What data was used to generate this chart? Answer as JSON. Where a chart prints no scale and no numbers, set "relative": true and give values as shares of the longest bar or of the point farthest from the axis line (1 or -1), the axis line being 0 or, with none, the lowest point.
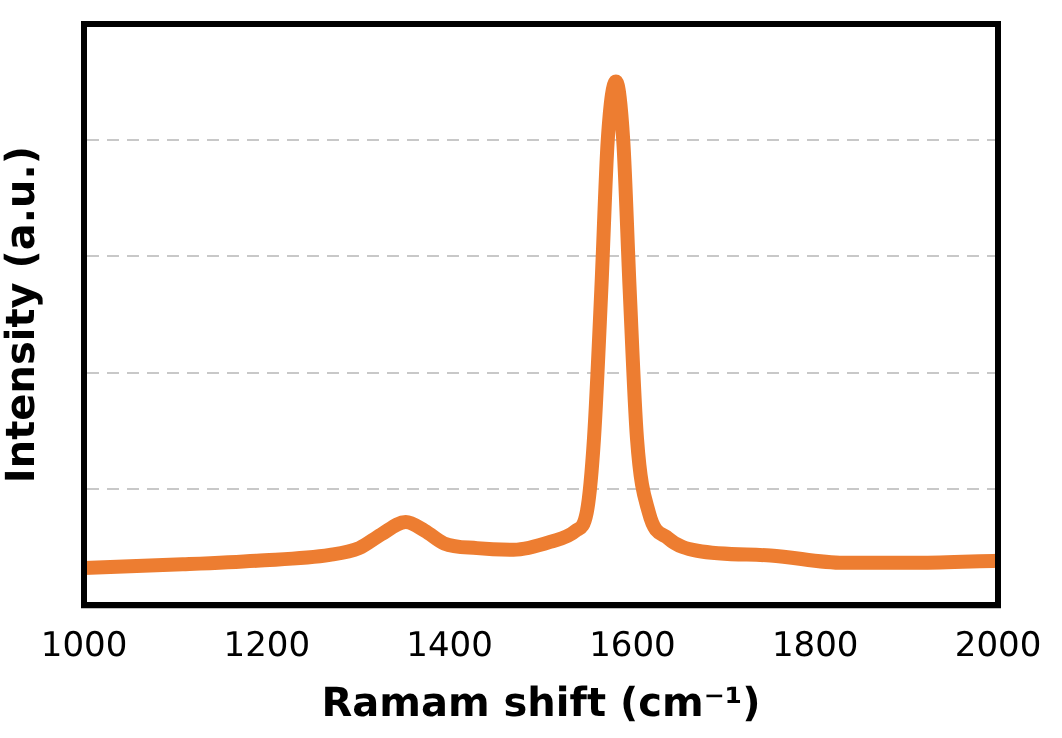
{
  "chart_data": {
    "type": "line",
    "xlabel": "Ramam shift (cm⁻¹)",
    "ylabel": "Intensity (a.u.)",
    "relative": true,
    "grid": "y",
    "legend": false,
    "marker": "none",
    "line_style": "solid",
    "xlim": [
      1000,
      2000
    ],
    "xticks": [
      1000,
      1200,
      1400,
      1600,
      1800,
      2000
    ],
    "series": [
      {
        "color": "#ed7d31",
        "x": [
          1000,
          1108,
          1189,
          1269,
          1301,
          1325,
          1352,
          1373,
          1394,
          1430,
          1470,
          1510,
          1538,
          1550,
          1558,
          1566,
          1573,
          1582,
          1590,
          1597,
          1605,
          1618,
          1639,
          1671,
          1751,
          1831,
          1912,
          2000
        ],
        "values": [
          0.071,
          0.078,
          0.085,
          0.096,
          0.109,
          0.135,
          0.159,
          0.142,
          0.118,
          0.109,
          0.106,
          0.121,
          0.142,
          0.177,
          0.319,
          0.603,
          0.887,
          1.0,
          0.887,
          0.603,
          0.319,
          0.177,
          0.128,
          0.104,
          0.095,
          0.081,
          0.081,
          0.085
        ]
      }
    ]
  }
}
